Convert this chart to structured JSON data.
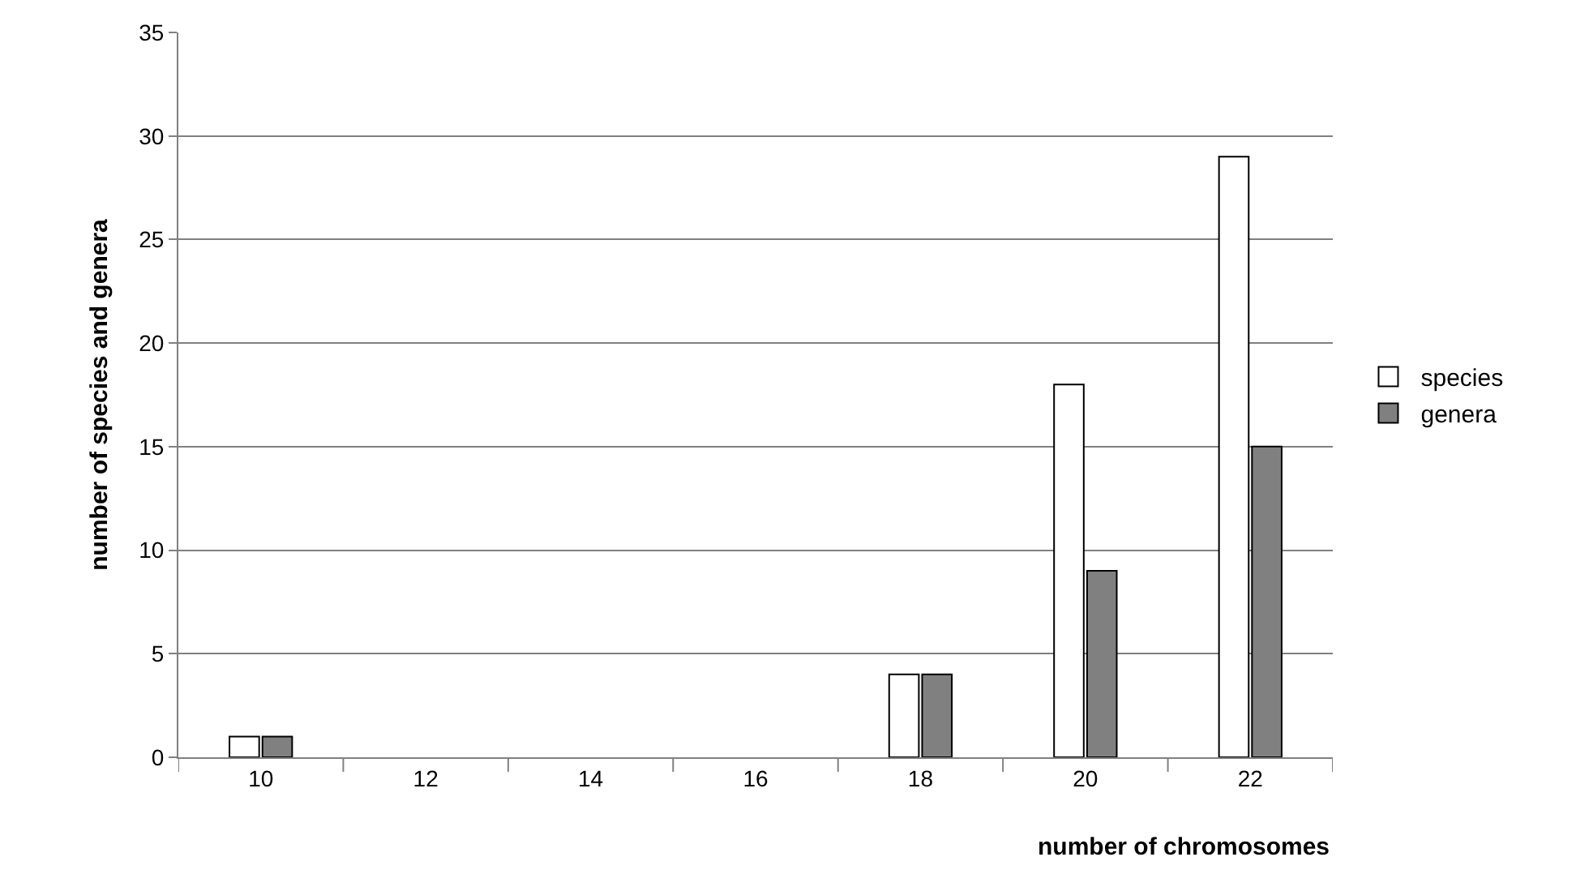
{
  "chart_data": {
    "type": "bar",
    "categories": [
      "10",
      "12",
      "14",
      "16",
      "18",
      "20",
      "22"
    ],
    "series": [
      {
        "name": "species",
        "color": "#ffffff",
        "values": [
          1,
          0,
          0,
          0,
          4,
          18,
          29
        ]
      },
      {
        "name": "genera",
        "color": "#808080",
        "values": [
          1,
          0,
          0,
          0,
          4,
          9,
          15
        ]
      }
    ],
    "xlabel": "number of chromosomes",
    "ylabel": "number of species and genera",
    "ylim": [
      0,
      35
    ],
    "yticks": [
      0,
      5,
      10,
      15,
      20,
      25,
      30,
      35
    ],
    "grid": "y",
    "legend": "right"
  }
}
